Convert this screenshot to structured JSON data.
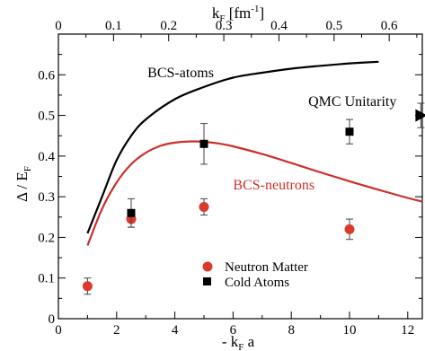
{
  "chart_data": {
    "type": "scatter",
    "xlabel_bottom": "- k",
    "xlabel_bottom_sub": "F",
    "xlabel_bottom_tail": " a",
    "xlabel_top": "k",
    "xlabel_top_sub": "F",
    "xlabel_top_unit": " [fm",
    "xlabel_top_unit_sup": "-1",
    "xlabel_top_unit_tail": "]",
    "ylabel": "Δ / E",
    "ylabel_sub": "F",
    "xlim": [
      0,
      12.5
    ],
    "ylim": [
      0,
      0.7
    ],
    "top_xlim": [
      0,
      0.66
    ],
    "x_ticks": [
      0,
      2,
      4,
      6,
      8,
      10,
      12
    ],
    "y_ticks": [
      0,
      0.1,
      0.2,
      0.3,
      0.4,
      0.5,
      0.6
    ],
    "top_x_ticks": [
      0,
      0.1,
      0.2,
      0.3,
      0.4,
      0.5,
      0.6
    ],
    "x_tick_labels": [
      "0",
      "2",
      "4",
      "6",
      "8",
      "10",
      "12"
    ],
    "y_tick_labels": [
      "0",
      "0.1",
      "0.2",
      "0.3",
      "0.4",
      "0.5",
      "0.6"
    ],
    "top_x_tick_labels": [
      "0",
      "0.1",
      "0.2",
      "0.3",
      "0.4",
      "0.5",
      "0.6"
    ],
    "curves": [
      {
        "name": "BCS-atoms",
        "color": "#000000",
        "x": [
          1.0,
          1.5,
          2.0,
          2.5,
          3.0,
          4.0,
          5.0,
          6.0,
          7.0,
          8.0,
          9.0,
          10.0,
          11.0
        ],
        "y": [
          0.21,
          0.3,
          0.39,
          0.45,
          0.49,
          0.54,
          0.57,
          0.593,
          0.605,
          0.615,
          0.622,
          0.628,
          0.632
        ]
      },
      {
        "name": "BCS-neutrons",
        "color": "#cc2f2a",
        "x": [
          1.0,
          1.5,
          2.0,
          2.5,
          3.0,
          3.5,
          4.0,
          4.5,
          5.0,
          5.5,
          6.0,
          7.0,
          8.0,
          9.0,
          10.0,
          11.0,
          12.0,
          12.5
        ],
        "y": [
          0.18,
          0.27,
          0.335,
          0.38,
          0.408,
          0.425,
          0.433,
          0.436,
          0.435,
          0.431,
          0.424,
          0.405,
          0.383,
          0.36,
          0.338,
          0.317,
          0.297,
          0.288
        ]
      }
    ],
    "series": [
      {
        "name": "Neutron Matter",
        "marker": "circle",
        "color": "#d93a2b",
        "points": [
          {
            "x": 1.0,
            "y": 0.08,
            "err": 0.02
          },
          {
            "x": 2.5,
            "y": 0.245,
            "err": 0.02
          },
          {
            "x": 5.0,
            "y": 0.275,
            "err": 0.02
          },
          {
            "x": 10.0,
            "y": 0.22,
            "err": 0.025
          }
        ]
      },
      {
        "name": "Cold Atoms",
        "marker": "square",
        "color": "#000000",
        "points": [
          {
            "x": 2.5,
            "y": 0.26,
            "err": 0.035
          },
          {
            "x": 5.0,
            "y": 0.43,
            "err": 0.05
          },
          {
            "x": 10.0,
            "y": 0.46,
            "err": 0.03
          }
        ]
      },
      {
        "name": "QMC Unitarity",
        "marker": "triangle-right",
        "color": "#000000",
        "points": [
          {
            "x": 12.45,
            "y": 0.5,
            "err": 0.03
          }
        ]
      }
    ],
    "annotations": [
      {
        "text": "BCS-atoms",
        "x": 4.2,
        "y": 0.594,
        "color": "#000000"
      },
      {
        "text": "BCS-neutrons",
        "x": 7.4,
        "y": 0.318,
        "color": "#cc2f2a"
      },
      {
        "text": "QMC Unitarity",
        "x": 10.1,
        "y": 0.523,
        "color": "#000000"
      }
    ],
    "legend": {
      "placement": "bottom-right",
      "entries": [
        "Neutron Matter",
        "Cold Atoms"
      ]
    },
    "grid": false
  }
}
